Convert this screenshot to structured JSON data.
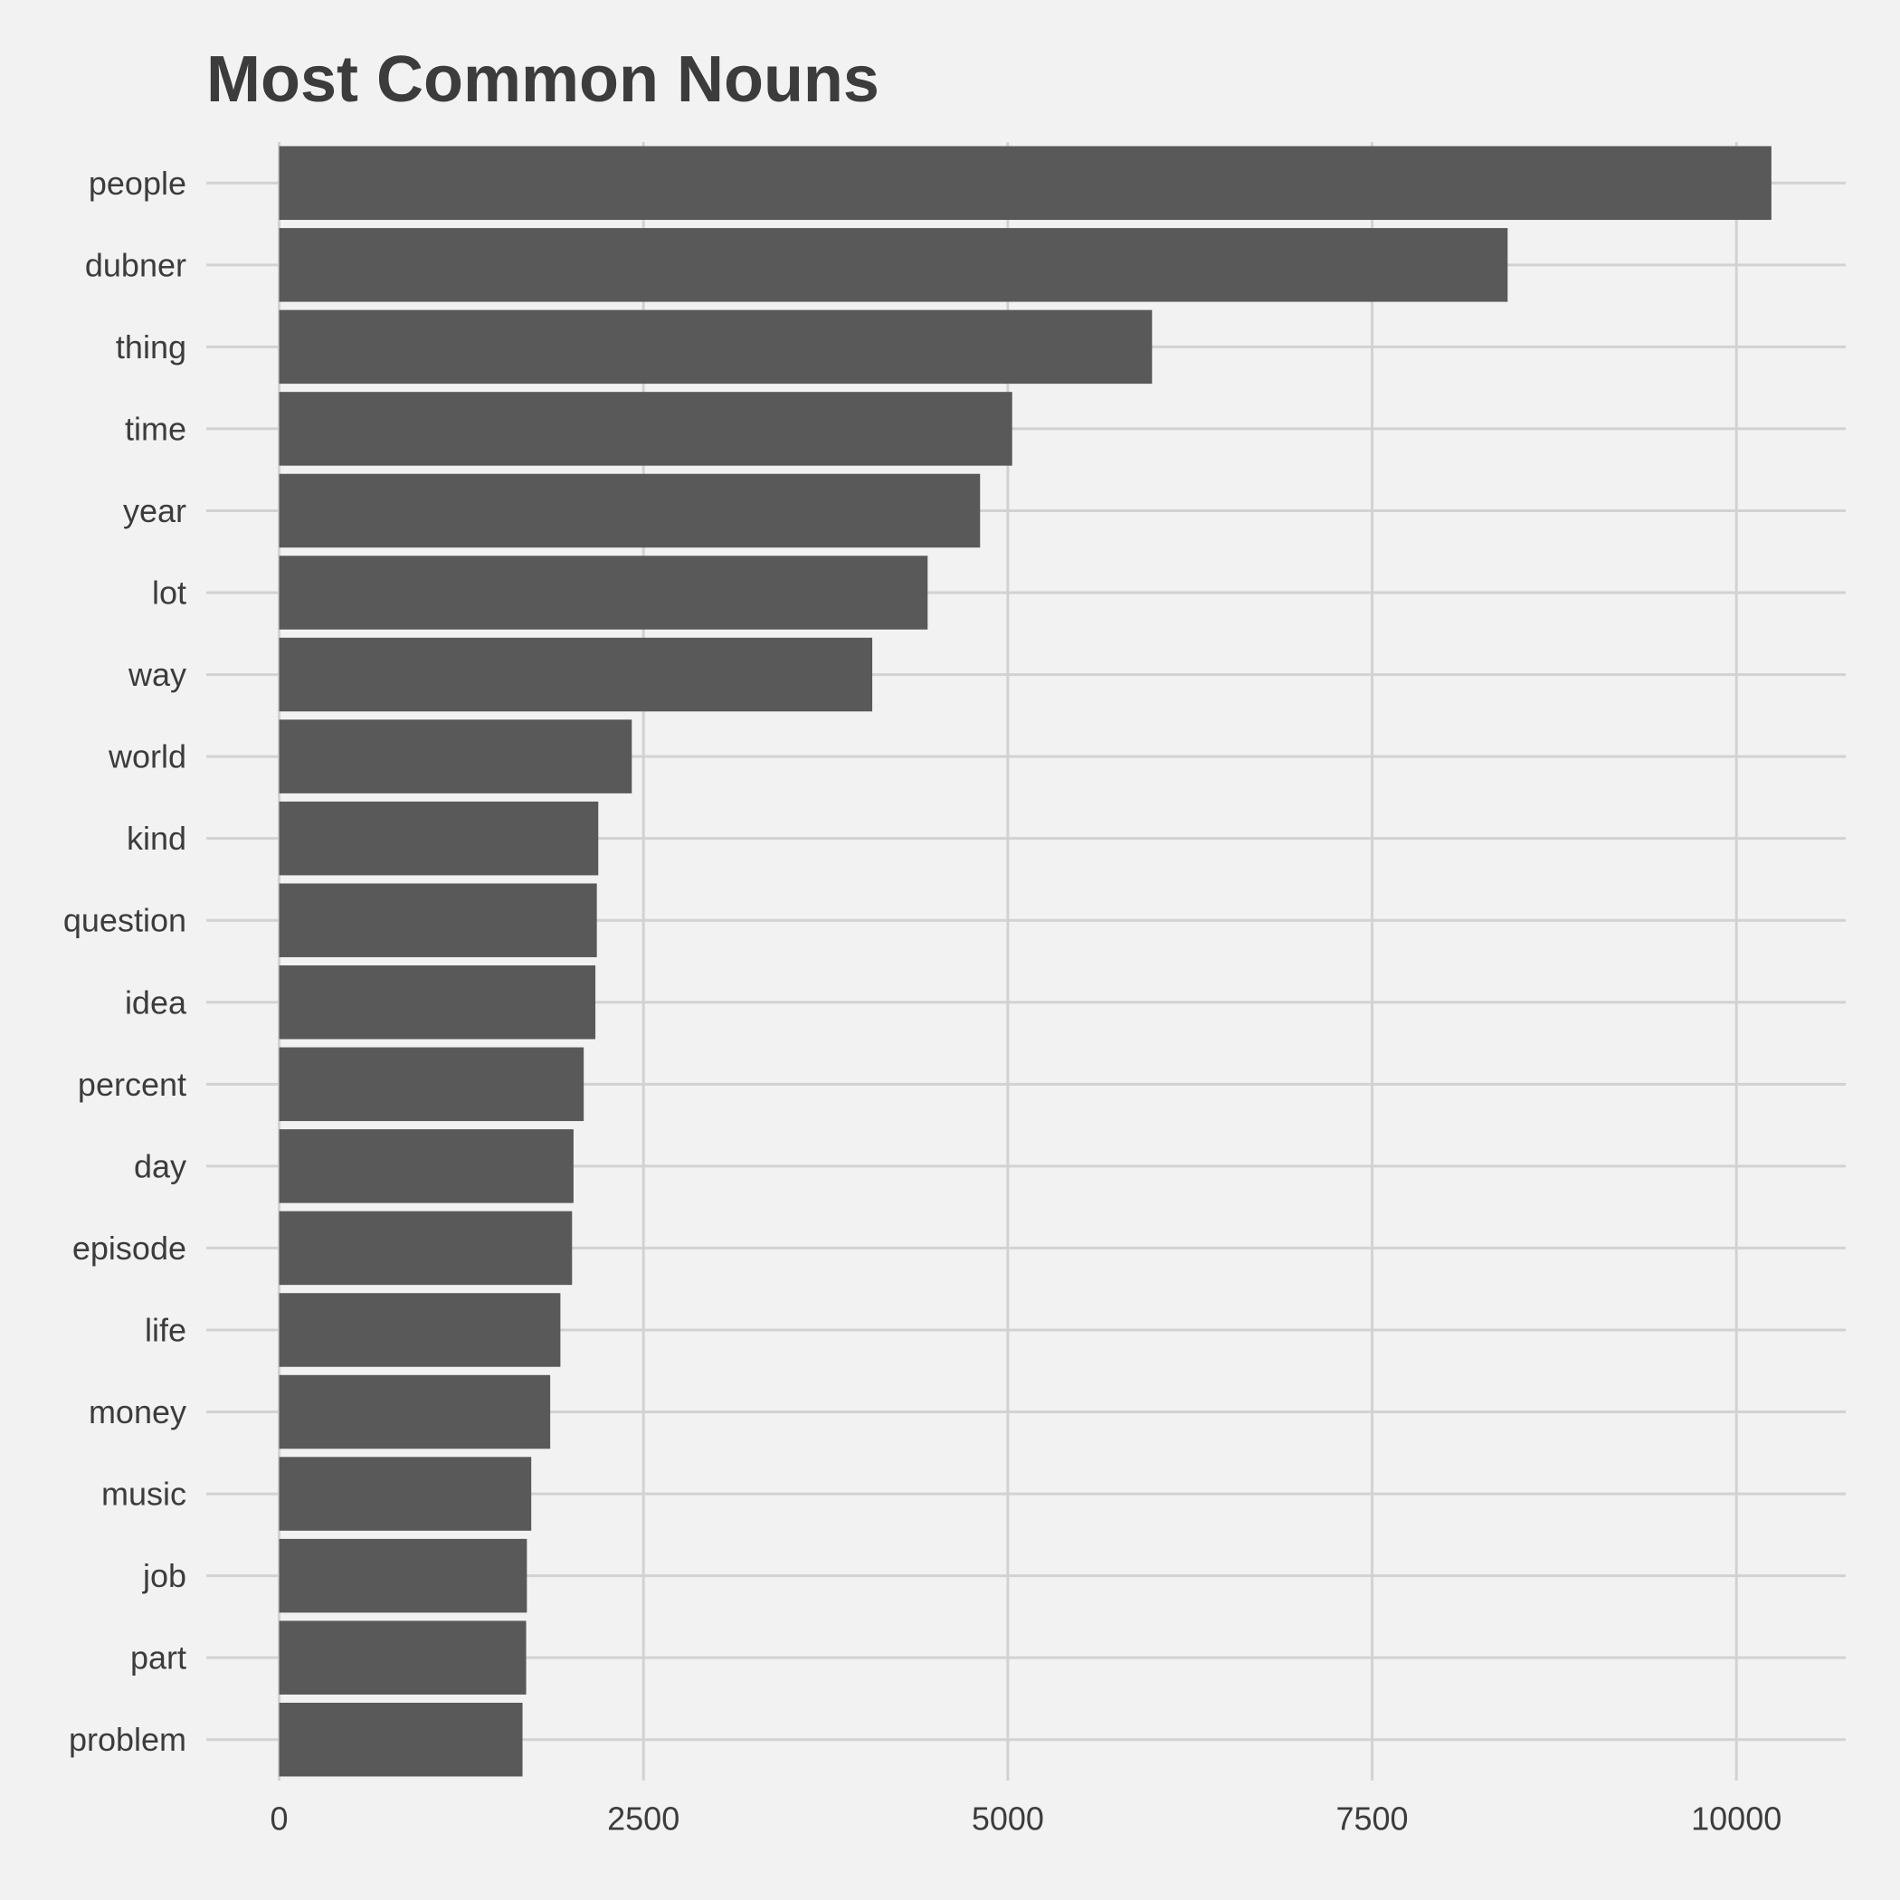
{
  "chart_data": {
    "type": "bar",
    "orientation": "horizontal",
    "title": "Most Common Nouns",
    "xlabel": "",
    "ylabel": "",
    "categories": [
      "people",
      "dubner",
      "thing",
      "time",
      "year",
      "lot",
      "way",
      "world",
      "kind",
      "question",
      "idea",
      "percent",
      "day",
      "episode",
      "life",
      "money",
      "music",
      "job",
      "part",
      "problem"
    ],
    "values": [
      10240,
      8430,
      5990,
      5030,
      4810,
      4450,
      4070,
      2420,
      2190,
      2180,
      2170,
      2090,
      2020,
      2010,
      1930,
      1860,
      1730,
      1700,
      1695,
      1670
    ],
    "xlim": [
      -500,
      10750
    ],
    "xticks": [
      0,
      2500,
      5000,
      7500,
      10000
    ],
    "xtick_labels": [
      "0",
      "2500",
      "5000",
      "7500",
      "10000"
    ],
    "grid": true,
    "bar_color": "#595959",
    "background_color": "#f2f2f2",
    "grid_color": "#d2d2d2",
    "text_color": "#3c3c3c"
  }
}
